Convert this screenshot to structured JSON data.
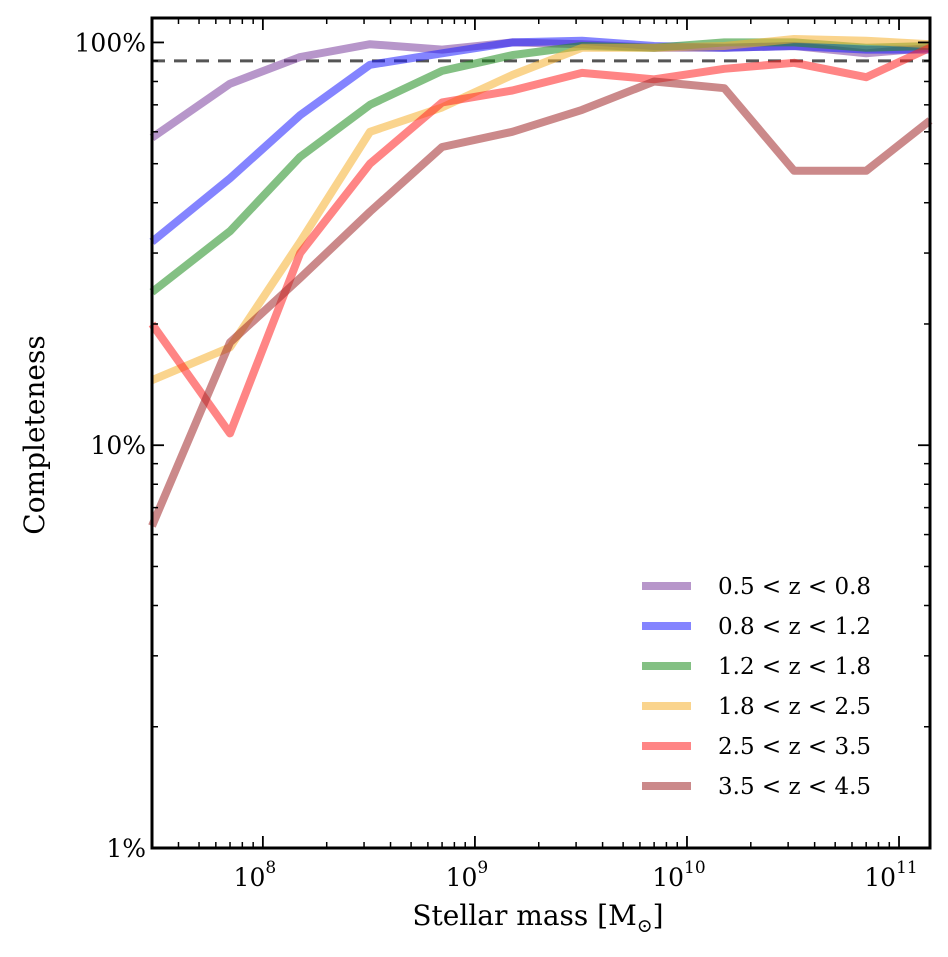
{
  "chart_data": {
    "type": "line",
    "xscale": "log",
    "yscale": "log",
    "xlim": [
      30000000,
      140000000000
    ],
    "ylim": [
      0.01,
      1.15
    ],
    "xlabel": "Stellar mass [M",
    "xlabel_subscript": "⊙",
    "xlabel_suffix": "]",
    "ylabel": "Completeness",
    "x_ticks": [
      {
        "value": 100000000,
        "base": "10",
        "exp": "8"
      },
      {
        "value": 1000000000,
        "base": "10",
        "exp": "9"
      },
      {
        "value": 10000000000,
        "base": "10",
        "exp": "10"
      },
      {
        "value": 100000000000,
        "base": "10",
        "exp": "11"
      }
    ],
    "y_ticks": [
      {
        "value": 0.01,
        "label": "1%"
      },
      {
        "value": 0.1,
        "label": "10%"
      },
      {
        "value": 1.0,
        "label": "100%"
      }
    ],
    "reference_line": {
      "y": 0.9,
      "style": "dashed",
      "color": "#555555"
    },
    "grid": false,
    "legend_position": "bottom-right",
    "x": [
      30000000,
      70000000,
      150000000,
      320000000,
      700000000,
      1500000000,
      3200000000,
      7000000000,
      15000000000,
      32000000000,
      70000000000,
      140000000000
    ],
    "series": [
      {
        "name": "0.5 < z < 0.8",
        "color": "#7B3F9E",
        "values": [
          0.58,
          0.79,
          0.92,
          0.99,
          0.96,
          1.0,
          0.99,
          0.97,
          0.97,
          0.98,
          0.94,
          0.97
        ]
      },
      {
        "name": "0.8 < z < 1.2",
        "color": "#1F1FFF",
        "values": [
          0.32,
          0.46,
          0.66,
          0.88,
          0.94,
          1.0,
          1.01,
          0.98,
          0.97,
          0.98,
          0.96,
          0.96
        ]
      },
      {
        "name": "1.2 < z < 1.8",
        "color": "#1E8C1E",
        "values": [
          0.24,
          0.34,
          0.52,
          0.7,
          0.85,
          0.93,
          0.98,
          0.97,
          1.0,
          1.0,
          0.97,
          0.98
        ]
      },
      {
        "name": "1.8 < z < 2.5",
        "color": "#F5B030",
        "values": [
          0.145,
          0.175,
          0.32,
          0.6,
          0.69,
          0.83,
          0.97,
          0.97,
          0.98,
          1.02,
          1.01,
          0.99
        ]
      },
      {
        "name": "2.5 < z < 3.5",
        "color": "#FF2020",
        "values": [
          0.2,
          0.107,
          0.3,
          0.5,
          0.71,
          0.76,
          0.84,
          0.81,
          0.86,
          0.89,
          0.82,
          0.97
        ]
      },
      {
        "name": "3.5 < z < 4.5",
        "color": "#A0282A",
        "values": [
          0.063,
          0.18,
          0.26,
          0.38,
          0.55,
          0.6,
          0.68,
          0.8,
          0.77,
          0.48,
          0.48,
          0.64
        ]
      }
    ]
  }
}
